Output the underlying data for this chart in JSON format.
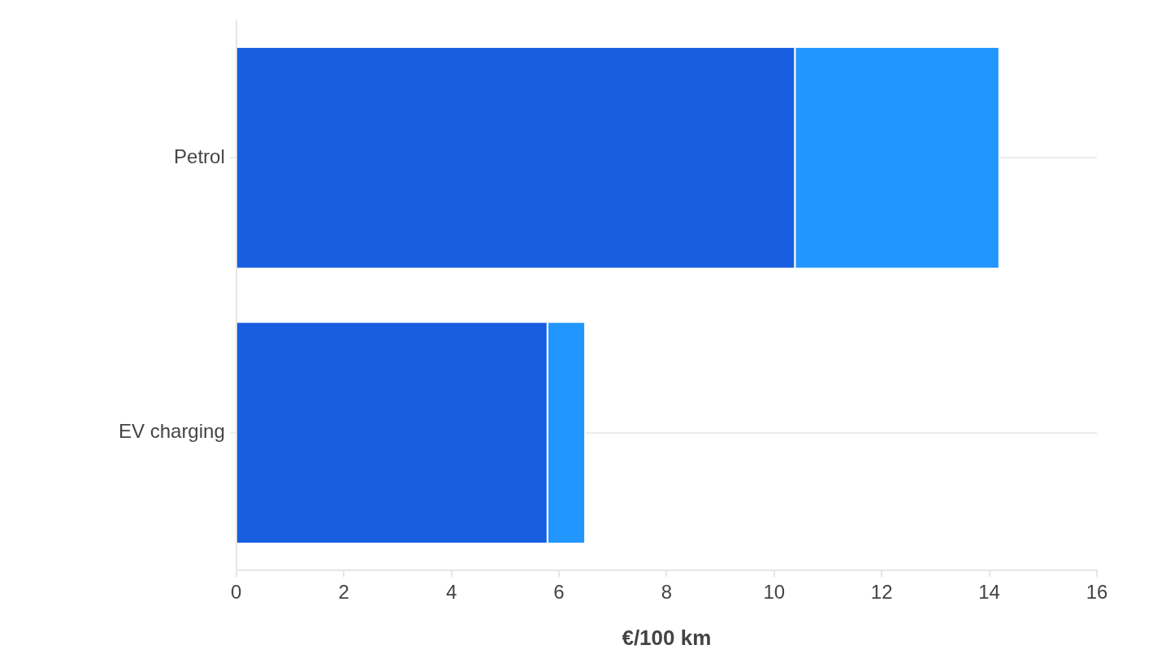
{
  "chart_data": {
    "type": "bar",
    "orientation": "horizontal",
    "stacked": true,
    "xlabel": "€/100 km",
    "categories": [
      "Petrol",
      "EV charging"
    ],
    "series": [
      {
        "color": "#175ee0",
        "values": [
          10.4,
          5.8
        ]
      },
      {
        "color": "#2196ff",
        "values": [
          3.8,
          0.7
        ]
      }
    ],
    "xlim": [
      0,
      16
    ],
    "xticks": [
      0,
      2,
      4,
      6,
      8,
      10,
      12,
      14,
      16
    ],
    "grid": "y"
  }
}
